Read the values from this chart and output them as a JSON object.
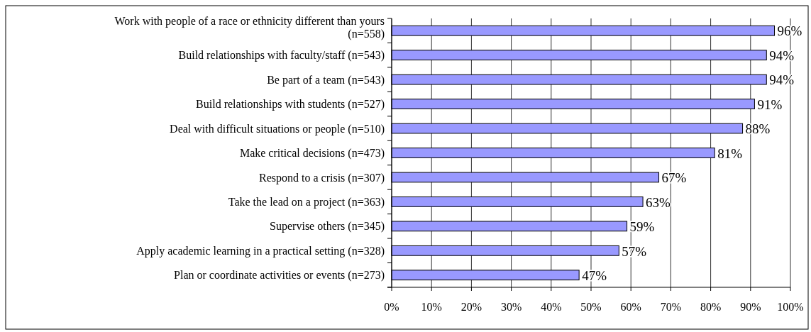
{
  "chart_data": {
    "type": "bar",
    "orientation": "horizontal",
    "categories": [
      "Work with people of a race or ethnicity different than yours (n=558)",
      "Build relationships with faculty/staff (n=543)",
      "Be part of a team (n=543)",
      "Build relationships with students (n=527)",
      "Deal with difficult situations or people (n=510)",
      "Make critical decisions (n=473)",
      "Respond to a crisis (n=307)",
      "Take the lead on a project (n=363)",
      "Supervise others (n=345)",
      "Apply academic learning in a practical setting (n=328)",
      "Plan or coordinate activities or events (n=273)"
    ],
    "values": [
      96,
      94,
      94,
      91,
      88,
      81,
      67,
      63,
      59,
      57,
      47
    ],
    "value_labels": [
      "96%",
      "94%",
      "94%",
      "91%",
      "88%",
      "81%",
      "67%",
      "63%",
      "59%",
      "57%",
      "47%"
    ],
    "color": "#9999ff",
    "xlim": [
      0,
      100
    ],
    "xticks": [
      {
        "value": 0,
        "label": "0%"
      },
      {
        "value": 10,
        "label": "10%"
      },
      {
        "value": 20,
        "label": "20%"
      },
      {
        "value": 30,
        "label": "30%"
      },
      {
        "value": 40,
        "label": "40%"
      },
      {
        "value": 50,
        "label": "50%"
      },
      {
        "value": 60,
        "label": "60%"
      },
      {
        "value": 70,
        "label": "70%"
      },
      {
        "value": 80,
        "label": "80%"
      },
      {
        "value": 90,
        "label": "90%"
      },
      {
        "value": 100,
        "label": "100%"
      }
    ],
    "grid": "x"
  }
}
